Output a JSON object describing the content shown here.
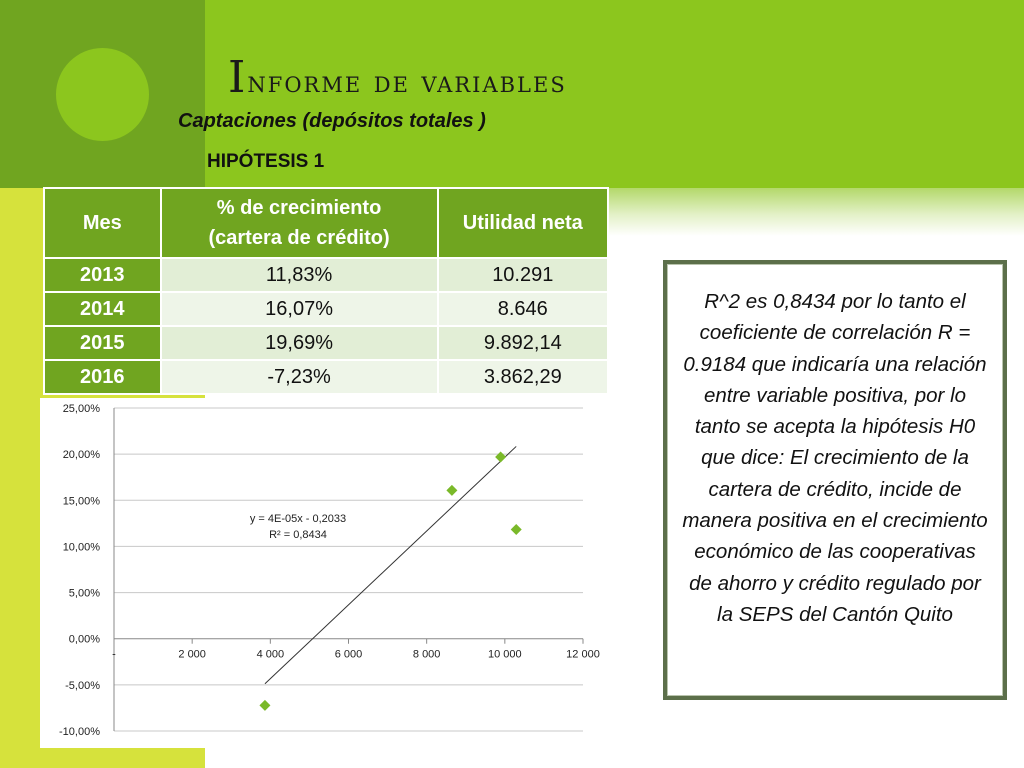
{
  "slide": {
    "title": "Informe de variables",
    "subtitle": "Captaciones  (depósitos totales )",
    "hypothesis": "HIPÓTESIS 1"
  },
  "table": {
    "headers": [
      "Mes",
      "% de crecimiento (cartera de crédito)",
      "Utilidad neta"
    ],
    "header_lines": {
      "growth_line1": "% de crecimiento",
      "growth_line2": "(cartera de crédito)"
    },
    "rows": [
      {
        "mes": "2013",
        "crecimiento": "11,83%",
        "utilidad": "10.291"
      },
      {
        "mes": "2014",
        "crecimiento": "16,07%",
        "utilidad": "8.646"
      },
      {
        "mes": "2015",
        "crecimiento": "19,69%",
        "utilidad": "9.892,14"
      },
      {
        "mes": "2016",
        "crecimiento": "-7,23%",
        "utilidad": "3.862,29"
      }
    ]
  },
  "chart_data": {
    "type": "scatter",
    "title": "",
    "xlabel": "",
    "ylabel": "",
    "xlim": [
      0,
      12000
    ],
    "ylim": [
      -10,
      25
    ],
    "x_ticks": [
      0,
      2000,
      4000,
      6000,
      8000,
      10000,
      12000
    ],
    "x_tick_labels": [
      "-",
      "2 000",
      "4 000",
      "6 000",
      "8 000",
      "10 000",
      "12 000"
    ],
    "y_ticks": [
      25,
      20,
      15,
      10,
      5,
      0,
      -5,
      -10
    ],
    "y_tick_labels": [
      "25,00%",
      "20,00%",
      "15,00%",
      "10,00%",
      "5,00%",
      "0,00%",
      "-5,00%",
      "-10,00%"
    ],
    "grid": true,
    "marker_color": "#7ab929",
    "points": [
      {
        "x": 10291,
        "y": 11.83
      },
      {
        "x": 8646,
        "y": 16.07
      },
      {
        "x": 9892.14,
        "y": 19.69
      },
      {
        "x": 3862.29,
        "y": -7.23
      }
    ],
    "trendline": {
      "slope_pct": 0.004,
      "intercept_pct": -20.33,
      "x_range": [
        3862.29,
        10291
      ]
    },
    "annotations": [
      "y = 4E-05x - 0,2033",
      "R² = 0,8434"
    ]
  },
  "note": {
    "text": "R^2 es 0,8434 por lo tanto el coeficiente de correlación R = 0.9184 que indicaría una relación entre variable positiva, por lo tanto se acepta la hipótesis H0 que dice: El crecimiento de la cartera de crédito, incide de manera positiva en el crecimiento económico de las cooperativas de ahorro y crédito regulado por la SEPS del Cantón Quito"
  },
  "colors": {
    "accent_dark": "#70a520",
    "accent_green": "#8cc61e",
    "accent_lime": "#d6e23c",
    "note_border": "#5c6f4a"
  }
}
